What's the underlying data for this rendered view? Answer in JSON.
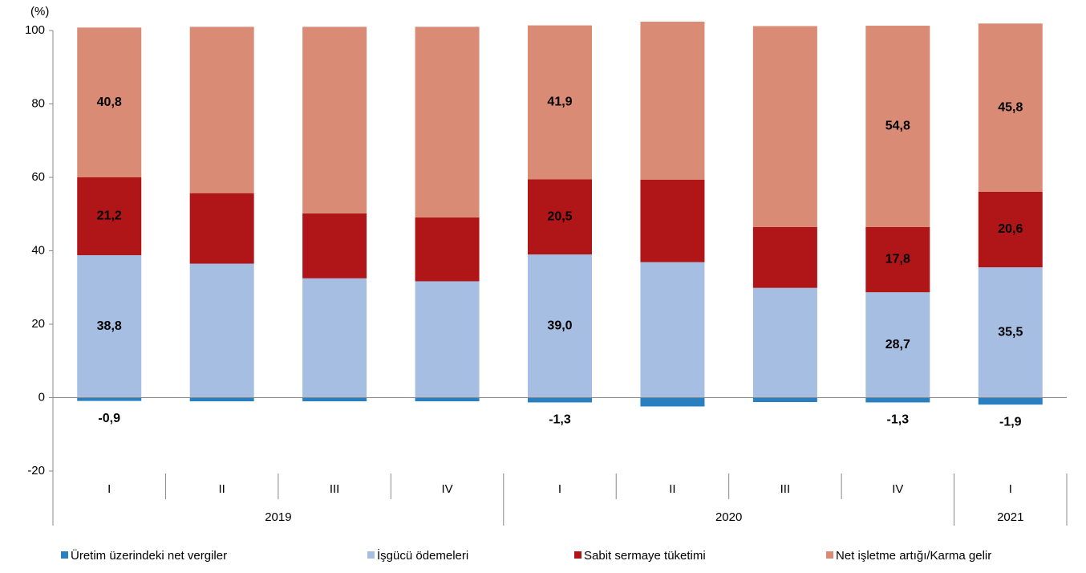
{
  "chart_data": {
    "type": "bar",
    "stacked": true,
    "y_unit": "(%)",
    "categories": [
      "I",
      "II",
      "III",
      "IV",
      "I",
      "II",
      "III",
      "IV",
      "I"
    ],
    "year_groups": [
      {
        "label": "2019",
        "count": 4
      },
      {
        "label": "2020",
        "count": 4
      },
      {
        "label": "2021",
        "count": 1
      }
    ],
    "series": [
      {
        "name": "Üretim üzerindeki net vergiler",
        "color": "#2a7fc1",
        "values": [
          -0.9,
          -1.0,
          -1.0,
          -1.0,
          -1.3,
          -2.4,
          -1.2,
          -1.3,
          -1.9
        ],
        "value_labels": [
          "-0,9",
          null,
          null,
          null,
          "-1,3",
          null,
          null,
          "-1,3",
          "-1,9"
        ]
      },
      {
        "name": "İşgücü ödemeleri",
        "color": "#a7bee3",
        "values": [
          38.8,
          36.5,
          32.5,
          31.7,
          39.0,
          36.9,
          29.9,
          28.7,
          35.5
        ],
        "value_labels": [
          "38,8",
          null,
          null,
          null,
          "39,0",
          null,
          null,
          "28,7",
          "35,5"
        ]
      },
      {
        "name": "Sabit sermaye tüketimi",
        "color": "#b01518",
        "values": [
          21.2,
          19.2,
          17.7,
          17.4,
          20.5,
          22.5,
          16.6,
          17.8,
          20.6
        ],
        "value_labels": [
          "21,2",
          null,
          null,
          null,
          "20,5",
          null,
          null,
          "17,8",
          "20,6"
        ]
      },
      {
        "name": "Net işletme artığı/Karma gelir",
        "color": "#d98b75",
        "values": [
          40.8,
          45.3,
          50.8,
          51.9,
          41.9,
          43.0,
          54.7,
          54.8,
          45.8
        ],
        "value_labels": [
          "40,8",
          null,
          null,
          null,
          "41,9",
          null,
          null,
          "54,8",
          "45,8"
        ]
      }
    ],
    "ylim": [
      -20,
      100
    ],
    "yticks": [
      -20,
      0,
      20,
      40,
      60,
      80,
      100
    ],
    "grid": false
  }
}
